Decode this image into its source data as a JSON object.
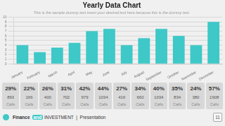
{
  "chart_data": {
    "type": "bar",
    "title": "Yearly Data Chart",
    "subtitle": "This is the sample dummy text insert your desired text here because this is the dummy text.",
    "categories": [
      "January",
      "February",
      "March",
      "April",
      "May",
      "June",
      "July",
      "August",
      "September",
      "October",
      "November",
      "December"
    ],
    "values": [
      4.0,
      2.5,
      3.5,
      4.5,
      7.0,
      7.5,
      4.0,
      5.5,
      7.5,
      6.0,
      4.0,
      9.0
    ],
    "color": "#3ec8c8",
    "ylim": [
      0,
      10
    ],
    "yticks": [
      0,
      1,
      2,
      3,
      4,
      5,
      6,
      7,
      8,
      9,
      10
    ],
    "grid": true,
    "annotations": [
      [
        "29%",
        "893",
        "Calls"
      ],
      [
        "22%",
        "166",
        "Calls"
      ],
      [
        "26%",
        "400",
        "Calls"
      ],
      [
        "31%",
        "702",
        "Calls"
      ],
      [
        "42%",
        "979",
        "Calls"
      ],
      [
        "44%",
        "1034",
        "Calls"
      ],
      [
        "27%",
        "419",
        "Calls"
      ],
      [
        "34%",
        "660",
        "Calls"
      ],
      [
        "40%",
        "1034",
        "Calls"
      ],
      [
        "35%",
        "834",
        "Calls"
      ],
      [
        "24%",
        "380",
        "Calls"
      ],
      [
        "57%",
        "1908",
        "Calls"
      ],
      "Finance",
      "and",
      " INVESTMENT  |  Presentation",
      "11"
    ]
  }
}
